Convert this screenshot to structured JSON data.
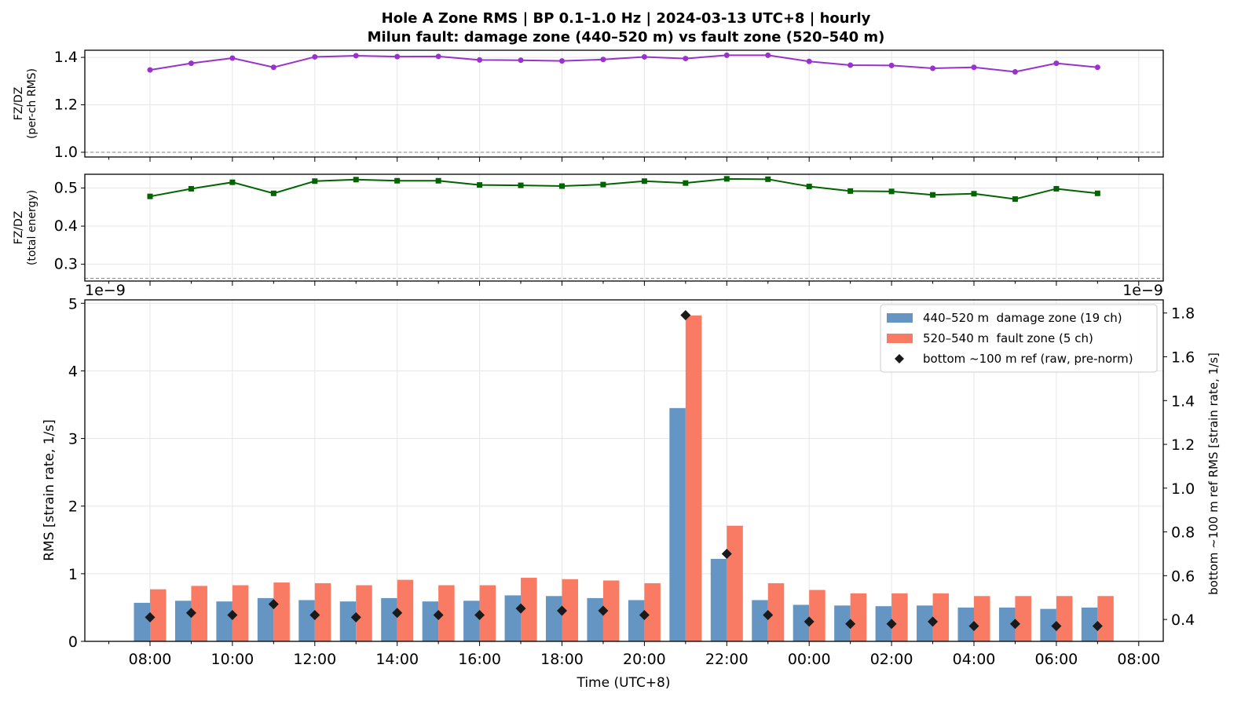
{
  "title": {
    "line1": "Hole A Zone RMS  |  BP 0.1–1.0 Hz  |  2024-03-13 UTC+8  |  hourly",
    "line2": "Milun fault: damage zone (440–520 m) vs fault zone (520–540 m)"
  },
  "colors": {
    "damage": "#6495c3",
    "fault": "#fa7b63",
    "ratio_rms": "#9932cc",
    "ratio_energy": "#006400",
    "ref": "#1a1a1a"
  },
  "chart_data": [
    {
      "type": "line",
      "panel": "top",
      "ylabel_line1": "FZ/DZ",
      "ylabel_line2": "(per-ch RMS)",
      "ylim": [
        0.98,
        1.43
      ],
      "yticks": [
        1.0,
        1.2,
        1.4
      ],
      "ytick_labels": [
        "1.0",
        "1.2",
        "1.4"
      ],
      "reference_line": 1.0,
      "grid": true,
      "x": [
        "08:00",
        "09:00",
        "10:00",
        "11:00",
        "12:00",
        "13:00",
        "14:00",
        "15:00",
        "16:00",
        "17:00",
        "18:00",
        "19:00",
        "20:00",
        "21:00",
        "22:00",
        "23:00",
        "00:00",
        "01:00",
        "02:00",
        "03:00",
        "04:00",
        "05:00",
        "06:00",
        "07:00"
      ],
      "values": [
        1.347,
        1.375,
        1.397,
        1.358,
        1.402,
        1.407,
        1.403,
        1.404,
        1.389,
        1.388,
        1.385,
        1.391,
        1.402,
        1.395,
        1.409,
        1.409,
        1.383,
        1.367,
        1.366,
        1.354,
        1.358,
        1.339,
        1.375,
        1.358
      ]
    },
    {
      "type": "line",
      "panel": "middle",
      "ylabel_line1": "FZ/DZ",
      "ylabel_line2": "(total energy)",
      "ylim": [
        0.256,
        0.536
      ],
      "yticks": [
        0.3,
        0.4,
        0.5
      ],
      "ytick_labels": [
        "0.3",
        "0.4",
        "0.5"
      ],
      "reference_line": 0.263,
      "grid": true,
      "x": [
        "08:00",
        "09:00",
        "10:00",
        "11:00",
        "12:00",
        "13:00",
        "14:00",
        "15:00",
        "16:00",
        "17:00",
        "18:00",
        "19:00",
        "20:00",
        "21:00",
        "22:00",
        "23:00",
        "00:00",
        "01:00",
        "02:00",
        "03:00",
        "04:00",
        "05:00",
        "06:00",
        "07:00"
      ],
      "values": [
        0.478,
        0.498,
        0.515,
        0.486,
        0.518,
        0.522,
        0.519,
        0.519,
        0.508,
        0.507,
        0.505,
        0.509,
        0.518,
        0.513,
        0.524,
        0.523,
        0.504,
        0.492,
        0.491,
        0.482,
        0.485,
        0.471,
        0.498,
        0.486
      ]
    },
    {
      "type": "bar",
      "panel": "bottom",
      "xlabel": "Time (UTC+8)",
      "ylabel": "RMS  [strain rate, 1/s]",
      "y2label": "bottom ~100 m ref RMS  [strain rate, 1/s]",
      "offset_left": "1e−9",
      "offset_right": "1e−9",
      "ylim": [
        0,
        5.05
      ],
      "yticks": [
        0,
        1,
        2,
        3,
        4,
        5
      ],
      "ytick_labels": [
        "0",
        "1",
        "2",
        "3",
        "4",
        "5"
      ],
      "y2lim": [
        0.3,
        1.86
      ],
      "y2ticks": [
        0.4,
        0.6,
        0.8,
        1.0,
        1.2,
        1.4,
        1.6,
        1.8
      ],
      "y2tick_labels": [
        "0.4",
        "0.6",
        "0.8",
        "1.0",
        "1.2",
        "1.4",
        "1.6",
        "1.8"
      ],
      "xticks": [
        "08:00",
        "10:00",
        "12:00",
        "14:00",
        "16:00",
        "18:00",
        "20:00",
        "22:00",
        "00:00",
        "02:00",
        "04:00",
        "06:00",
        "08:00"
      ],
      "grid": true,
      "legend": "top-right",
      "categories": [
        "08:00",
        "09:00",
        "10:00",
        "11:00",
        "12:00",
        "13:00",
        "14:00",
        "15:00",
        "16:00",
        "17:00",
        "18:00",
        "19:00",
        "20:00",
        "21:00",
        "22:00",
        "23:00",
        "00:00",
        "01:00",
        "02:00",
        "03:00",
        "04:00",
        "05:00",
        "06:00",
        "07:00"
      ],
      "series": [
        {
          "name": "440–520 m  damage zone (19 ch)",
          "kind": "bar",
          "values": [
            0.57,
            0.6,
            0.59,
            0.64,
            0.61,
            0.59,
            0.64,
            0.59,
            0.6,
            0.68,
            0.67,
            0.64,
            0.61,
            3.45,
            1.22,
            0.61,
            0.54,
            0.53,
            0.52,
            0.53,
            0.5,
            0.5,
            0.48,
            0.5
          ]
        },
        {
          "name": "520–540 m  fault zone (5 ch)",
          "kind": "bar",
          "values": [
            0.77,
            0.82,
            0.83,
            0.87,
            0.86,
            0.83,
            0.91,
            0.83,
            0.83,
            0.94,
            0.92,
            0.9,
            0.86,
            4.82,
            1.71,
            0.86,
            0.76,
            0.71,
            0.71,
            0.71,
            0.67,
            0.67,
            0.67,
            0.67
          ]
        },
        {
          "name": "bottom ~100 m ref (raw, pre-norm)",
          "kind": "marker",
          "axis": "right",
          "values": [
            0.41,
            0.43,
            0.42,
            0.47,
            0.42,
            0.41,
            0.43,
            0.42,
            0.42,
            0.45,
            0.44,
            0.44,
            0.42,
            1.79,
            0.7,
            0.42,
            0.39,
            0.38,
            0.38,
            0.39,
            0.37,
            0.38,
            0.37,
            0.37
          ]
        }
      ]
    }
  ]
}
